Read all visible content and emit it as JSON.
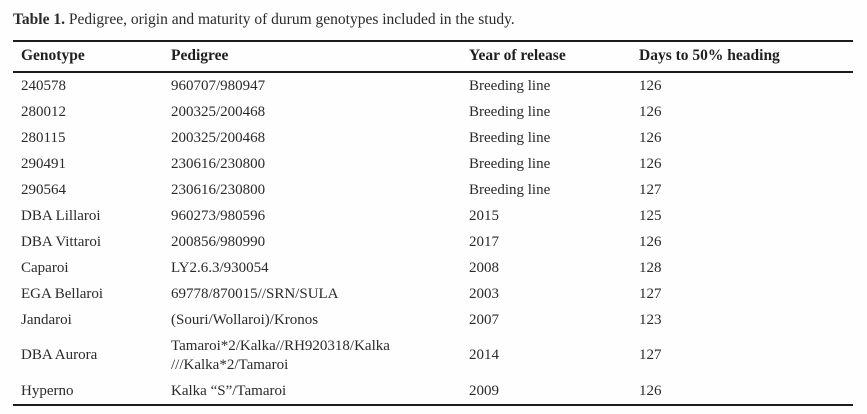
{
  "title": {
    "label": "Table 1.",
    "text": " Pedigree, origin and maturity of durum genotypes included in the study."
  },
  "table": {
    "columns": [
      "Genotype",
      "Pedigree",
      "Year of release",
      "Days to 50% heading"
    ],
    "rows": [
      {
        "genotype": "240578",
        "pedigree": "960707/980947",
        "year": "Breeding line",
        "days": "126"
      },
      {
        "genotype": "280012",
        "pedigree": "200325/200468",
        "year": "Breeding line",
        "days": "126"
      },
      {
        "genotype": "280115",
        "pedigree": "200325/200468",
        "year": "Breeding line",
        "days": "126"
      },
      {
        "genotype": "290491",
        "pedigree": "230616/230800",
        "year": "Breeding line",
        "days": "126"
      },
      {
        "genotype": "290564",
        "pedigree": "230616/230800",
        "year": "Breeding line",
        "days": "127"
      },
      {
        "genotype": "DBA Lillaroi",
        "pedigree": "960273/980596",
        "year": "2015",
        "days": "125"
      },
      {
        "genotype": "DBA Vittaroi",
        "pedigree": "200856/980990",
        "year": "2017",
        "days": "126"
      },
      {
        "genotype": "Caparoi",
        "pedigree": "LY2.6.3/930054",
        "year": "2008",
        "days": "128"
      },
      {
        "genotype": "EGA Bellaroi",
        "pedigree": "69778/870015//SRN/SULA",
        "year": "2003",
        "days": "127"
      },
      {
        "genotype": "Jandaroi",
        "pedigree": "(Souri/Wollaroi)/Kronos",
        "year": "2007",
        "days": "123"
      },
      {
        "genotype": "DBA Aurora",
        "pedigree": "Tamaroi*2/Kalka//RH920318/Kalka\n///Kalka*2/Tamaroi",
        "year": "2014",
        "days": "127"
      },
      {
        "genotype": "Hyperno",
        "pedigree": "Kalka “S”/Tamaroi",
        "year": "2009",
        "days": "126"
      }
    ]
  }
}
